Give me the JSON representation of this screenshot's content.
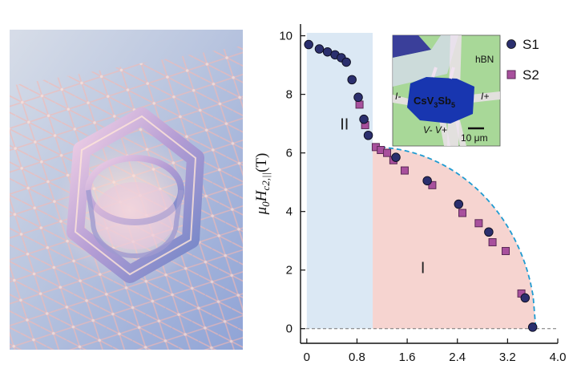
{
  "figure": {
    "render_alt": "CsV3Sb5 kagome lattice illustration",
    "inset": {
      "material_main": "CsV",
      "material_sub1": "3",
      "material_mid": "Sb",
      "material_sub2": "5",
      "hbn_label": "hBN",
      "i_minus": "I-",
      "i_plus": "I+",
      "v_labels": "V- V+",
      "scale_bar": "10 μm"
    }
  },
  "chart_data": {
    "type": "scatter",
    "title": "",
    "xlabel": "",
    "ylabel_parts": {
      "mu": "μ",
      "mu_sub": "0",
      "h": "H",
      "h_sub": "c2,||",
      "unit": "(T)"
    },
    "xlim": [
      -0.1,
      4.0
    ],
    "ylim": [
      -0.5,
      10.4
    ],
    "x_ticks": [
      "0",
      "0.8",
      "1.6",
      "2.4",
      "3.2",
      "4.0"
    ],
    "x_tick_values": [
      0,
      0.8,
      1.6,
      2.4,
      3.2,
      4.0
    ],
    "y_ticks": [
      "0",
      "2",
      "4",
      "6",
      "8",
      "10"
    ],
    "y_tick_values": [
      0,
      2,
      4,
      6,
      8,
      10
    ],
    "regions": [
      {
        "label": "II",
        "x_range": [
          0,
          1.05
        ],
        "color": "#cfe0f0"
      },
      {
        "label": "I",
        "x_range": [
          1.05,
          3.65
        ],
        "color": "#f4c9c4"
      }
    ],
    "series": [
      {
        "name": "S1",
        "marker": "circle",
        "color": "#2b2f6e",
        "x": [
          0.03,
          0.2,
          0.33,
          0.45,
          0.55,
          0.63,
          0.72,
          0.82,
          0.91,
          0.98,
          1.42,
          1.92,
          2.42,
          2.9,
          3.48,
          3.6
        ],
        "y": [
          9.7,
          9.55,
          9.45,
          9.35,
          9.25,
          9.1,
          8.5,
          7.9,
          7.15,
          6.6,
          5.85,
          5.05,
          4.25,
          3.3,
          1.05,
          0.05
        ]
      },
      {
        "name": "S2",
        "marker": "square",
        "color": "#a8509d",
        "x": [
          0.84,
          0.93,
          1.1,
          1.18,
          1.28,
          1.38,
          1.56,
          2.0,
          2.48,
          2.74,
          2.96,
          3.17,
          3.42
        ],
        "y": [
          7.65,
          6.95,
          6.2,
          6.1,
          6.0,
          5.75,
          5.4,
          4.9,
          3.95,
          3.6,
          2.95,
          2.65,
          1.2
        ]
      }
    ],
    "fit_curve": {
      "x_start": 1.05,
      "x_end": 3.65,
      "y_start": 6.2,
      "color": "#1f9bd1"
    }
  }
}
